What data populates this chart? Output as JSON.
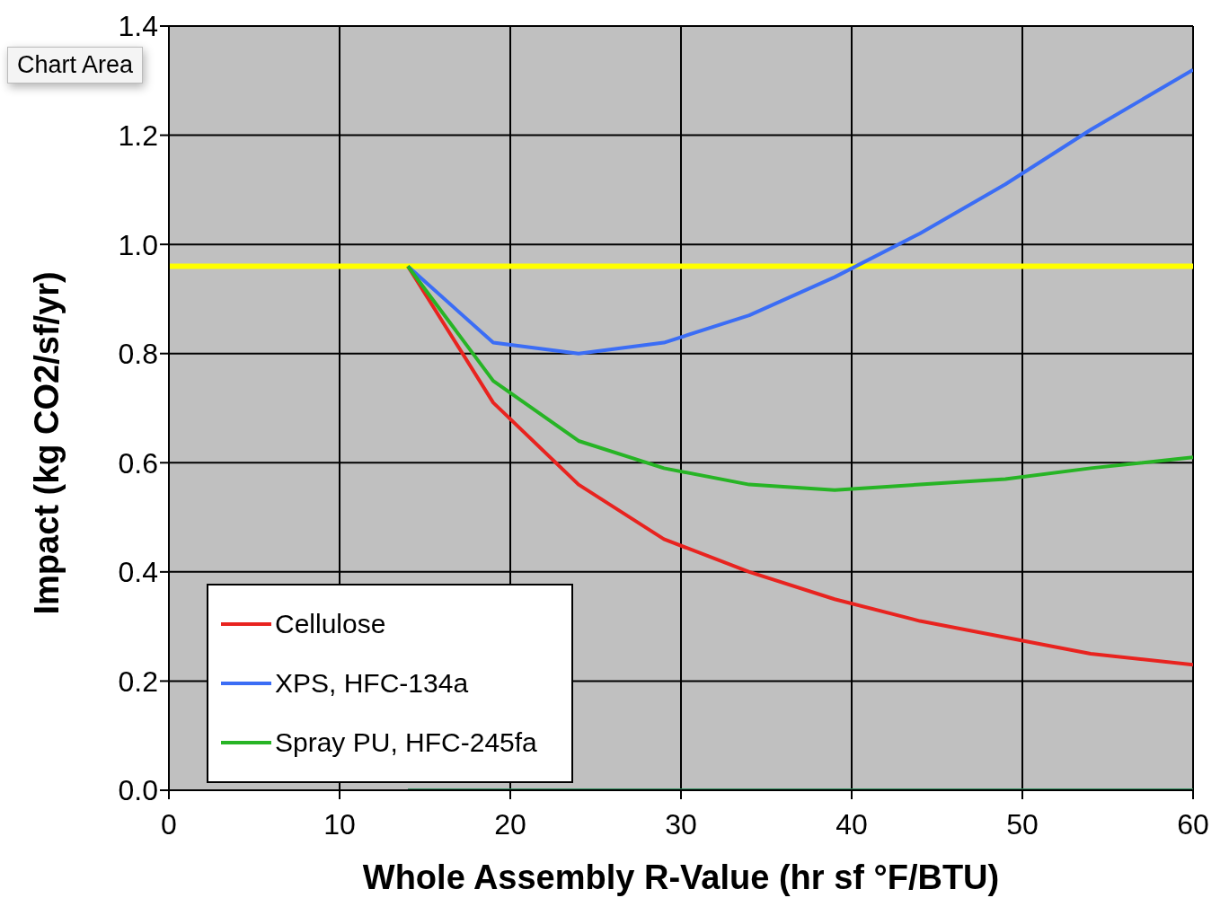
{
  "chart_data": {
    "type": "line",
    "xlabel": "Whole Assembly R-Value (hr sf °F/BTU)",
    "ylabel": "Impact  (kg CO2/sf/yr)",
    "x": [
      14,
      19,
      24,
      29,
      34,
      39,
      44,
      49,
      54,
      60
    ],
    "series": [
      {
        "name": "Cellulose",
        "color": "#e8231f",
        "values": [
          0.96,
          0.71,
          0.56,
          0.46,
          0.4,
          0.35,
          0.31,
          0.28,
          0.25,
          0.23
        ]
      },
      {
        "name": "XPS, HFC-134a",
        "color": "#3b6df5",
        "values": [
          0.96,
          0.82,
          0.8,
          0.82,
          0.87,
          0.94,
          1.02,
          1.11,
          1.21,
          1.32
        ]
      },
      {
        "name": "Spray PU, HFC-245fa",
        "color": "#27b425",
        "values": [
          0.96,
          0.75,
          0.64,
          0.59,
          0.56,
          0.55,
          0.56,
          0.57,
          0.59,
          0.61
        ]
      },
      {
        "color": "#2f8a5c",
        "values": [
          0,
          0,
          0,
          0,
          0,
          0,
          0,
          0,
          0,
          0
        ]
      }
    ],
    "xlim": [
      0,
      60
    ],
    "xticks": [
      0,
      10,
      20,
      30,
      40,
      50,
      60
    ],
    "ylim": [
      0,
      1.4
    ],
    "yticks": [
      {
        "value": 0,
        "label": "0.0"
      },
      {
        "value": 0.2,
        "label": "0.2"
      },
      {
        "value": 0.4,
        "label": "0.4"
      },
      {
        "value": 0.6,
        "label": "0.6"
      },
      {
        "value": 0.8,
        "label": "0.8"
      },
      {
        "value": 1,
        "label": "1.0"
      },
      {
        "value": 1.2,
        "label": "1.2"
      },
      {
        "value": 1.4,
        "label": "1.4"
      }
    ],
    "ref_lines": [
      {
        "axis": "y",
        "value": 0.96,
        "color": "#ffff00"
      }
    ],
    "annotations": [
      "Chart Area"
    ],
    "grid": true,
    "legend": "bottom left",
    "marker": "none",
    "line_style": "solid"
  }
}
